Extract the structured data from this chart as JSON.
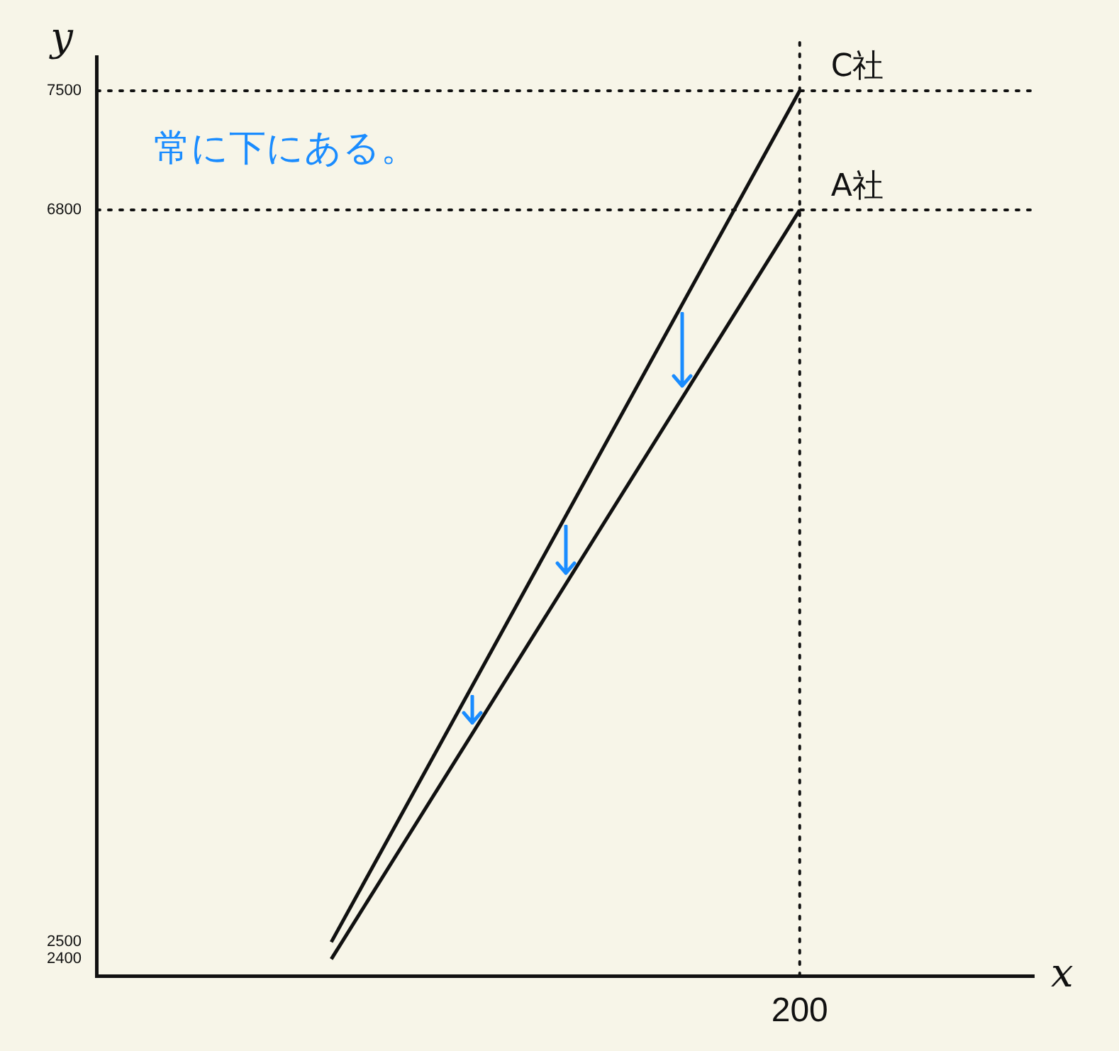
{
  "chart_data": {
    "type": "line",
    "xlabel": "x",
    "ylabel": "y",
    "categories": [
      null,
      "200"
    ],
    "series": [
      {
        "name": "C社",
        "color": "#111111",
        "values": [
          2500,
          7500
        ]
      },
      {
        "name": "A社",
        "color": "#111111",
        "values": [
          2400,
          6800
        ]
      }
    ],
    "ylim": [
      2300,
      7700
    ],
    "yticks": [
      2400,
      2500,
      6800,
      7500
    ],
    "ref_lines": [
      {
        "axis": "y",
        "value": 7500,
        "color": "#111111",
        "line_style": "dotted"
      },
      {
        "axis": "y",
        "value": 6800,
        "color": "#111111",
        "line_style": "dotted"
      },
      {
        "axis": "x",
        "value": "200",
        "color": "#111111",
        "line_style": "dotted"
      }
    ],
    "annotations": [
      "常に下にある。"
    ],
    "grid": false,
    "legend": false,
    "marker": "none",
    "line_style": "solid"
  }
}
